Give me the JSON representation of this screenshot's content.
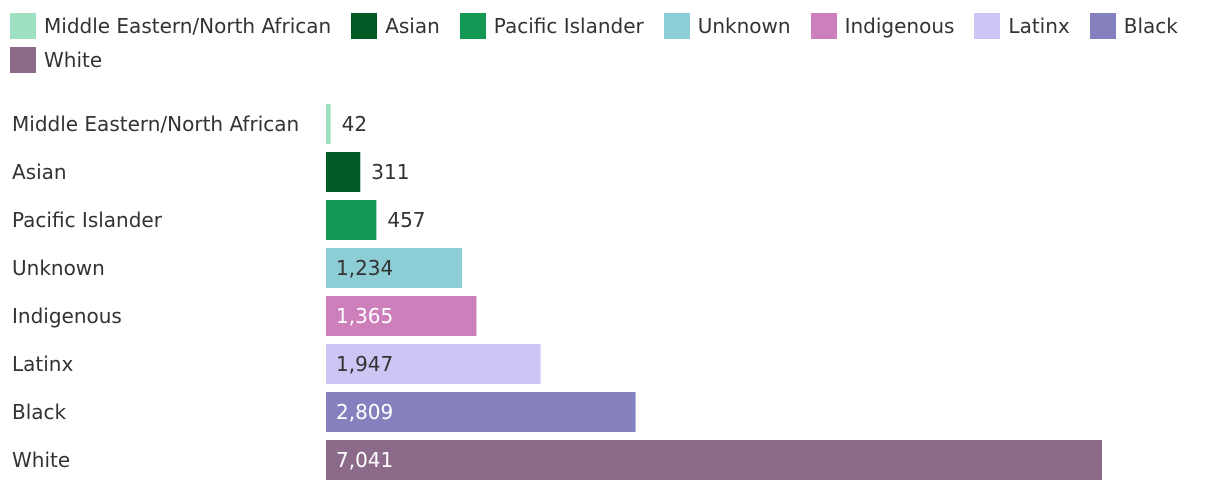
{
  "chart_data": {
    "type": "bar",
    "orientation": "horizontal",
    "categories": [
      "Middle Eastern/North African",
      "Asian",
      "Pacific Islander",
      "Unknown",
      "Indigenous",
      "Latinx",
      "Black",
      "White"
    ],
    "values": [
      42,
      311,
      457,
      1234,
      1365,
      1947,
      2809,
      7041
    ],
    "value_labels": [
      "42",
      "311",
      "457",
      "1,234",
      "1,365",
      "1,947",
      "2,809",
      "7,041"
    ],
    "colors": [
      "#9ee0c2",
      "#005a24",
      "#149955",
      "#8ccdd6",
      "#cd7fbc",
      "#cbc6f3",
      "#8580be",
      "#8b6a8a"
    ],
    "value_label_colors": [
      "#333333",
      "#333333",
      "#333333",
      "#333333",
      "#ffffff",
      "#333333",
      "#ffffff",
      "#ffffff"
    ],
    "legend": [
      "Middle Eastern/North African",
      "Asian",
      "Pacific Islander",
      "Unknown",
      "Indigenous",
      "Latinx",
      "Black",
      "White"
    ],
    "legend_placement": "top",
    "grid": false,
    "xlim": [
      0,
      7041
    ]
  }
}
